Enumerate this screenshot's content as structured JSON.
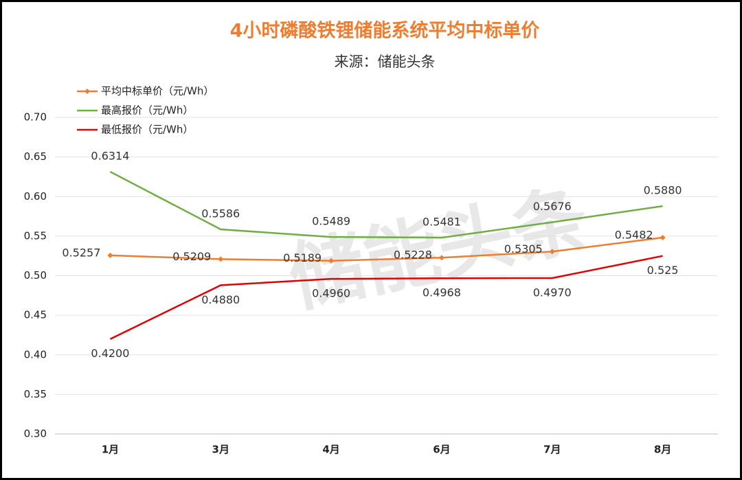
{
  "chart_data": {
    "type": "line",
    "title": "4小时磷酸铁锂储能系统平均中标单价",
    "subtitle": "来源：储能头条",
    "watermark": "储能头条",
    "categories": [
      "1月",
      "3月",
      "4月",
      "6月",
      "7月",
      "8月"
    ],
    "series": [
      {
        "name": "平均中标单价（元/Wh）",
        "color": "#ED7D31",
        "marker": "diamond",
        "values": [
          0.5257,
          0.5209,
          0.5189,
          0.5228,
          0.5305,
          0.5482
        ]
      },
      {
        "name": "最高报价（元/Wh）",
        "color": "#70AD47",
        "values": [
          0.6314,
          0.5586,
          0.5489,
          0.5481,
          0.5676,
          0.588
        ],
        "value_labels": [
          "0.6314",
          "0.5586",
          "0.5489",
          "0.5481",
          "0.5676",
          "0.5880"
        ]
      },
      {
        "name": "最低报价（元/Wh）",
        "color": "#E00000",
        "values": [
          0.42,
          0.488,
          0.496,
          0.4968,
          0.497,
          0.525
        ],
        "value_labels": [
          "0.4200",
          "0.4880",
          "0.4960",
          "0.4968",
          "0.4970",
          "0.525"
        ]
      }
    ],
    "ylim": [
      0.3,
      0.7
    ],
    "yticks": [
      {
        "value": 0.3,
        "label": "0.30"
      },
      {
        "value": 0.35,
        "label": "0.35"
      },
      {
        "value": 0.4,
        "label": "0.40"
      },
      {
        "value": 0.45,
        "label": "0.45"
      },
      {
        "value": 0.5,
        "label": "0.50"
      },
      {
        "value": 0.55,
        "label": "0.55"
      },
      {
        "value": 0.6,
        "label": "0.60"
      },
      {
        "value": 0.65,
        "label": "0.65"
      },
      {
        "value": 0.7,
        "label": "0.70"
      }
    ],
    "grid": true,
    "legend": "top-left"
  }
}
